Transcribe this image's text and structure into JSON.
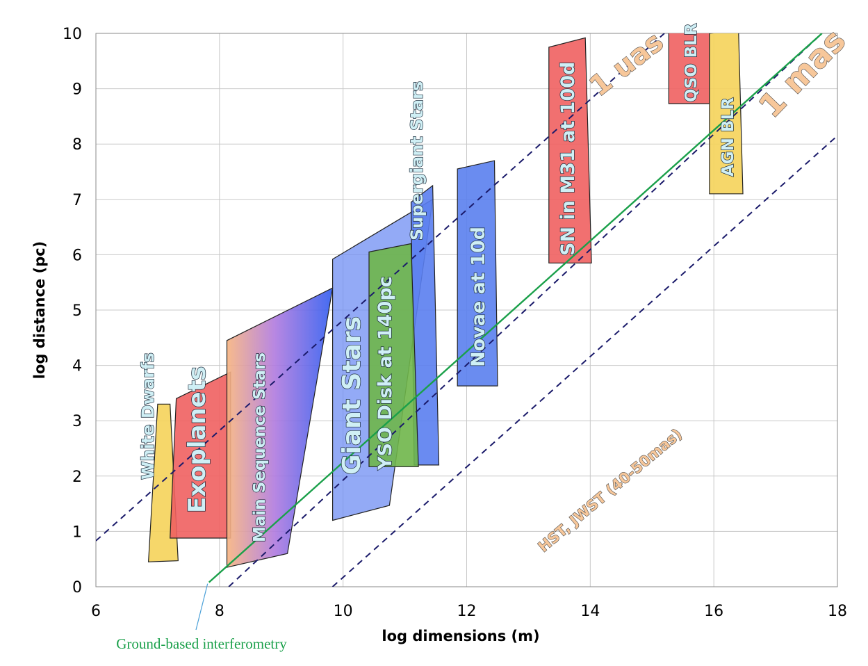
{
  "chart_data": {
    "type": "area",
    "xlabel": "log dimensions (m)",
    "ylabel": "log distance (pc)",
    "xlim": [
      6,
      18
    ],
    "ylim": [
      0,
      10
    ],
    "xticks": [
      "6",
      "8",
      "10",
      "12",
      "14",
      "16",
      "18"
    ],
    "yticks": [
      "0",
      "1",
      "2",
      "3",
      "4",
      "5",
      "6",
      "7",
      "8",
      "9",
      "10"
    ],
    "grid": true,
    "regions": [
      {
        "id": "white-dwarfs",
        "label": "White Dwarfs",
        "color": "#f5d35a",
        "polygon": [
          [
            6.85,
            0.45
          ],
          [
            7.33,
            0.47
          ],
          [
            7.2,
            3.3
          ],
          [
            7.0,
            3.3
          ]
        ]
      },
      {
        "id": "exoplanets",
        "label": "Exoplanets",
        "color": "#f06060",
        "polygon": [
          [
            7.2,
            0.88
          ],
          [
            8.18,
            0.88
          ],
          [
            8.18,
            3.88
          ],
          [
            7.3,
            3.4
          ]
        ]
      },
      {
        "id": "main-sequence",
        "label": "Main Sequence Stars",
        "color": "#2f5cf0",
        "polygon": [
          [
            8.12,
            0.35
          ],
          [
            9.1,
            0.6
          ],
          [
            9.83,
            5.4
          ],
          [
            8.12,
            4.45
          ]
        ]
      },
      {
        "id": "giant-stars",
        "label": "Giant Stars",
        "color": "#6f8ef3",
        "polygon": [
          [
            9.83,
            1.2
          ],
          [
            10.75,
            1.47
          ],
          [
            11.45,
            7.0
          ],
          [
            9.83,
            5.92
          ]
        ]
      },
      {
        "id": "supergiant-stars",
        "label": "Supergiant Stars",
        "color": "#5a7ef0",
        "polygon": [
          [
            11.15,
            2.2
          ],
          [
            11.55,
            2.2
          ],
          [
            11.45,
            7.25
          ],
          [
            11.1,
            6.95
          ]
        ]
      },
      {
        "id": "yso-disk",
        "label": "YSO Disk at 140pc",
        "color": "#6fb64a",
        "polygon": [
          [
            10.42,
            2.17
          ],
          [
            11.22,
            2.17
          ],
          [
            11.1,
            6.2
          ],
          [
            10.42,
            6.05
          ]
        ]
      },
      {
        "id": "novae",
        "label": "Novae at 10d",
        "color": "#5a80ee",
        "polygon": [
          [
            11.85,
            3.63
          ],
          [
            12.5,
            3.63
          ],
          [
            12.45,
            7.7
          ],
          [
            11.85,
            7.55
          ]
        ]
      },
      {
        "id": "sn-m31",
        "label": "SN in M31 at 100d",
        "color": "#f06060",
        "polygon": [
          [
            13.33,
            5.85
          ],
          [
            14.02,
            5.85
          ],
          [
            13.92,
            9.92
          ],
          [
            13.33,
            9.75
          ]
        ]
      },
      {
        "id": "qso-blr",
        "label": "QSO BLR",
        "color": "#f06060",
        "polygon": [
          [
            15.27,
            8.73
          ],
          [
            15.93,
            8.73
          ],
          [
            15.93,
            10.02
          ],
          [
            15.27,
            10.02
          ]
        ]
      },
      {
        "id": "agn-blr",
        "label": "AGN BLR",
        "color": "#f5d35a",
        "polygon": [
          [
            15.93,
            7.1
          ],
          [
            16.47,
            7.1
          ],
          [
            16.4,
            10.05
          ],
          [
            15.93,
            10.0
          ]
        ]
      }
    ],
    "lines": [
      {
        "id": "one-uas",
        "label": "1 uas",
        "style": "dashed",
        "color": "#1a1a6a",
        "x": [
          6.0,
          15.2
        ],
        "y": [
          0.83,
          10.0
        ]
      },
      {
        "id": "one-mas-a",
        "label": "1 mas",
        "style": "dashed",
        "color": "#1a1a6a",
        "x": [
          8.15,
          17.75
        ],
        "y": [
          0.0,
          10.0
        ]
      },
      {
        "id": "hst-jwst",
        "label": "HST, JWST (40-50mas)",
        "style": "dashed",
        "color": "#1a1a6a",
        "x": [
          9.83,
          18.0
        ],
        "y": [
          0.0,
          8.15
        ]
      },
      {
        "id": "ground-interferometry",
        "label": "",
        "style": "solid",
        "color": "#1aa04a",
        "x": [
          7.83,
          17.75
        ],
        "y": [
          0.08,
          10.0
        ]
      }
    ],
    "annotations": [
      {
        "id": "ground-based",
        "text": "Ground-based interferometry",
        "color": "#1aa04a",
        "points_to": [
          7.83,
          0.08
        ]
      }
    ]
  }
}
